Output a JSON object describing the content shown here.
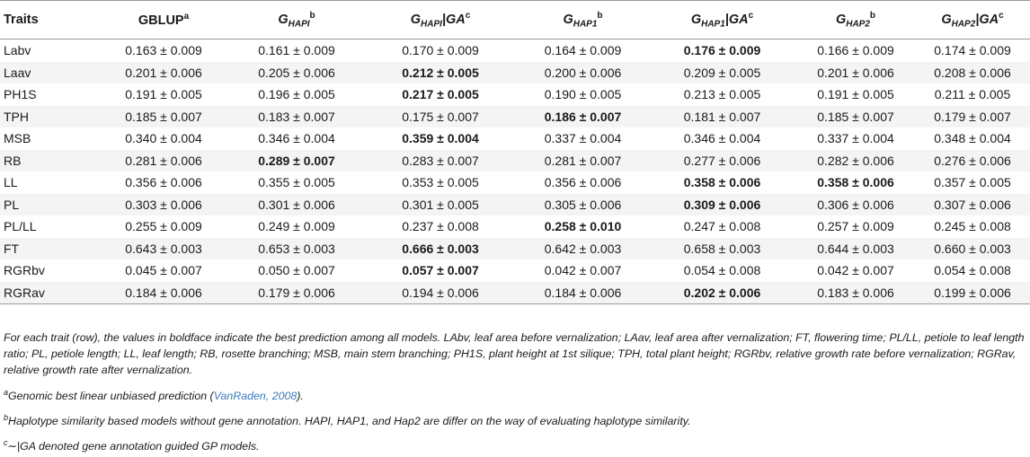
{
  "table": {
    "header": {
      "traits": "Traits",
      "gblup": {
        "main": "GBLUP",
        "sup": "a"
      },
      "col2": {
        "g": "G",
        "sub": "HAPI",
        "sup": "b"
      },
      "col3": {
        "g": "G",
        "sub": "HAPI",
        "bar": "|GA",
        "sup": "c"
      },
      "col4": {
        "g": "G",
        "sub": "HAP1",
        "sup": "b"
      },
      "col5": {
        "g": "G",
        "sub": "HAP1",
        "bar": "|GA",
        "sup": "c"
      },
      "col6": {
        "g": "G",
        "sub": "HAP2",
        "sup": "b"
      },
      "col7": {
        "g": "G",
        "sub": "HAP2",
        "bar": "|GA",
        "sup": "c"
      }
    },
    "rows": [
      {
        "trait": "Labv",
        "v": [
          "0.163 ± 0.009",
          "0.161 ± 0.009",
          "0.170 ± 0.009",
          "0.164 ± 0.009",
          "0.176 ± 0.009",
          "0.166 ± 0.009",
          "0.174 ± 0.009"
        ]
      },
      {
        "trait": "Laav",
        "v": [
          "0.201 ± 0.006",
          "0.205 ± 0.006",
          "0.212 ± 0.005",
          "0.200 ± 0.006",
          "0.209 ± 0.005",
          "0.201 ± 0.006",
          "0.208 ± 0.006"
        ]
      },
      {
        "trait": "PH1S",
        "v": [
          "0.191 ± 0.005",
          "0.196 ± 0.005",
          "0.217 ± 0.005",
          "0.190 ± 0.005",
          "0.213 ± 0.005",
          "0.191 ± 0.005",
          "0.211 ± 0.005"
        ]
      },
      {
        "trait": "TPH",
        "v": [
          "0.185 ± 0.007",
          "0.183 ± 0.007",
          "0.175 ± 0.007",
          "0.186 ± 0.007",
          "0.181 ± 0.007",
          "0.185 ± 0.007",
          "0.179 ± 0.007"
        ]
      },
      {
        "trait": "MSB",
        "v": [
          "0.340 ± 0.004",
          "0.346 ± 0.004",
          "0.359 ± 0.004",
          "0.337 ± 0.004",
          "0.346 ± 0.004",
          "0.337 ± 0.004",
          "0.348 ± 0.004"
        ]
      },
      {
        "trait": "RB",
        "v": [
          "0.281 ± 0.006",
          "0.289 ± 0.007",
          "0.283 ± 0.007",
          "0.281 ± 0.007",
          "0.277 ± 0.006",
          "0.282 ± 0.006",
          "0.276 ± 0.006"
        ]
      },
      {
        "trait": "LL",
        "v": [
          "0.356 ± 0.006",
          "0.355 ± 0.005",
          "0.353 ± 0.005",
          "0.356 ± 0.006",
          "0.358 ± 0.006",
          "0.358 ± 0.006",
          "0.357 ± 0.005"
        ]
      },
      {
        "trait": "PL",
        "v": [
          "0.303 ± 0.006",
          "0.301 ± 0.006",
          "0.301 ± 0.005",
          "0.305 ± 0.006",
          "0.309 ± 0.006",
          "0.306 ± 0.006",
          "0.307 ± 0.006"
        ]
      },
      {
        "trait": "PL/LL",
        "v": [
          "0.255 ± 0.009",
          "0.249 ± 0.009",
          "0.237 ± 0.008",
          "0.258 ± 0.010",
          "0.247 ± 0.008",
          "0.257 ± 0.009",
          "0.245 ± 0.008"
        ]
      },
      {
        "trait": "FT",
        "v": [
          "0.643 ± 0.003",
          "0.653 ± 0.003",
          "0.666 ± 0.003",
          "0.642 ± 0.003",
          "0.658 ± 0.003",
          "0.644 ± 0.003",
          "0.660 ± 0.003"
        ]
      },
      {
        "trait": "RGRbv",
        "v": [
          "0.045 ± 0.007",
          "0.050 ± 0.007",
          "0.057 ± 0.007",
          "0.042 ± 0.007",
          "0.054 ± 0.008",
          "0.042 ± 0.007",
          "0.054 ± 0.008"
        ]
      },
      {
        "trait": "RGRav",
        "v": [
          "0.184 ± 0.006",
          "0.179 ± 0.006",
          "0.194 ± 0.006",
          "0.184 ± 0.006",
          "0.202 ± 0.006",
          "0.183 ± 0.006",
          "0.199 ± 0.006"
        ]
      }
    ],
    "bold_cells": [
      [
        0,
        4
      ],
      [
        1,
        2
      ],
      [
        2,
        2
      ],
      [
        3,
        3
      ],
      [
        4,
        2
      ],
      [
        5,
        1
      ],
      [
        6,
        4
      ],
      [
        6,
        5
      ],
      [
        7,
        4
      ],
      [
        8,
        3
      ],
      [
        9,
        2
      ],
      [
        10,
        2
      ],
      [
        11,
        4
      ]
    ]
  },
  "notes": {
    "main": "For each trait (row), the values in boldface indicate the best prediction among all models. LAbv, leaf area before vernalization; LAav, leaf area after vernalization; FT, flowering time; PL/LL, petiole to leaf length ratio; PL, petiole length; LL, leaf length; RB, rosette branching; MSB, main stem branching; PH1S, plant height at 1st silique; TPH, total plant height; RGRbv, relative growth rate before vernalization; RGRav, relative growth rate after vernalization.",
    "a": {
      "mark": "a",
      "text": "Genomic best linear unbiased prediction (",
      "ref": "VanRaden, 2008",
      "end": ")."
    },
    "b": {
      "mark": "b",
      "text": "Haplotype similarity based models without gene annotation. HAPI, HAP1, and Hap2 are differ on the way of evaluating haplotype similarity."
    },
    "c": {
      "mark": "c",
      "text": "∼|GA denoted gene annotation guided GP models."
    }
  }
}
